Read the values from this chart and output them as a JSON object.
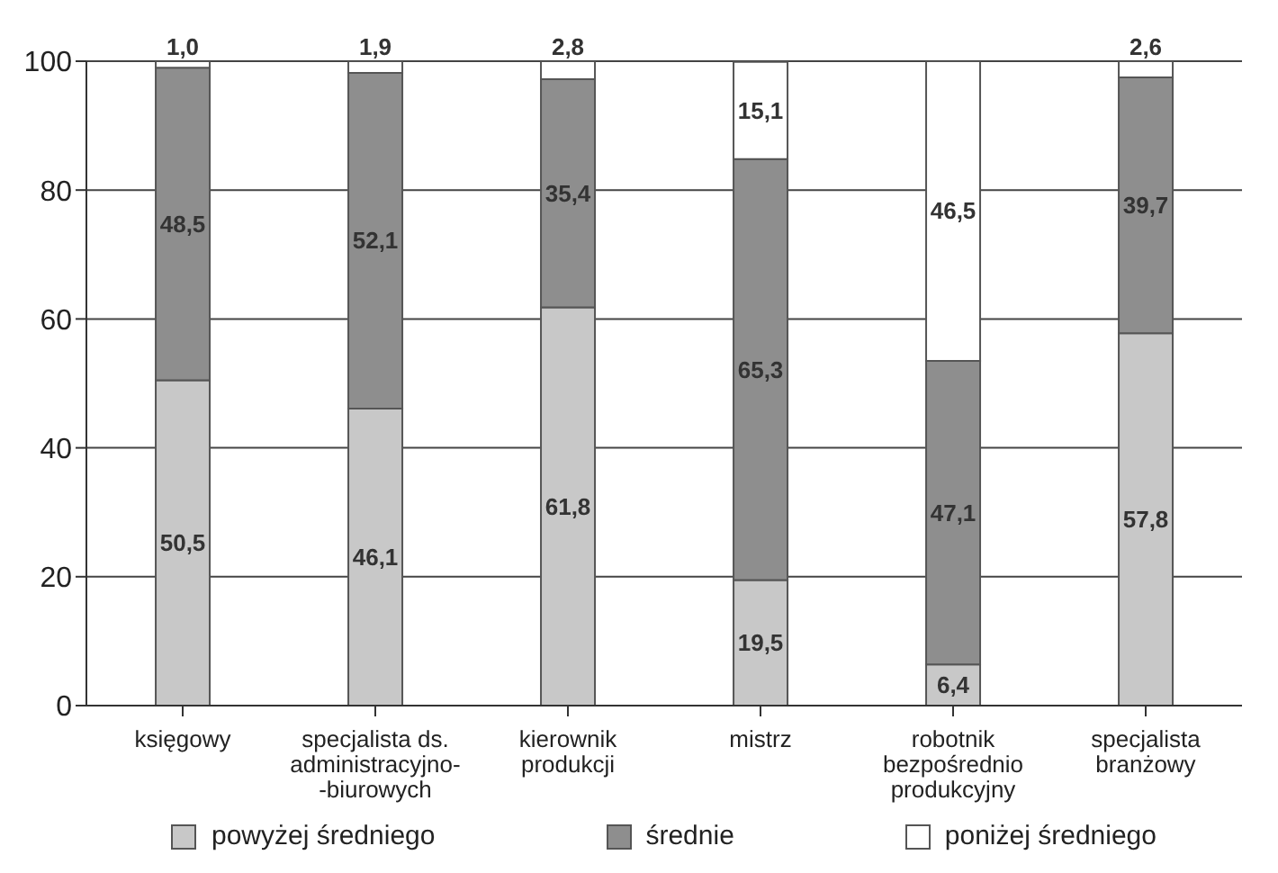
{
  "chart_data": {
    "type": "bar",
    "stacked": true,
    "categories": [
      "księgowy",
      "specjalista ds.\nadministracyjno-\n-biurowych",
      "kierownik\nprodukcji",
      "mistrz",
      "robotnik\nbezpośrednio\nprodukcyjny",
      "specjalista\nbranżowy"
    ],
    "series": [
      {
        "name": "powyżej średniego",
        "color": "#c8c8c8",
        "values": [
          50.5,
          46.1,
          61.8,
          19.5,
          6.4,
          57.8
        ],
        "value_labels": [
          "50,5",
          "46,1",
          "61,8",
          "19,5",
          "6,4",
          "57,8"
        ]
      },
      {
        "name": "średnie",
        "color": "#8e8e8e",
        "values": [
          48.5,
          52.1,
          35.4,
          65.3,
          47.1,
          39.7
        ],
        "value_labels": [
          "48,5",
          "52,1",
          "35,4",
          "65,3",
          "47,1",
          "39,7"
        ]
      },
      {
        "name": "poniżej średniego",
        "color": "#ffffff",
        "values": [
          1.0,
          1.9,
          2.8,
          15.1,
          46.5,
          2.6
        ],
        "value_labels": [
          "1,0",
          "1,9",
          "2,8",
          "15,1",
          "46,5",
          "2,6"
        ]
      }
    ],
    "ylim": [
      0,
      100
    ],
    "yticks": [
      0,
      20,
      40,
      60,
      80,
      100
    ],
    "grid": "y",
    "legend": "bottom"
  }
}
